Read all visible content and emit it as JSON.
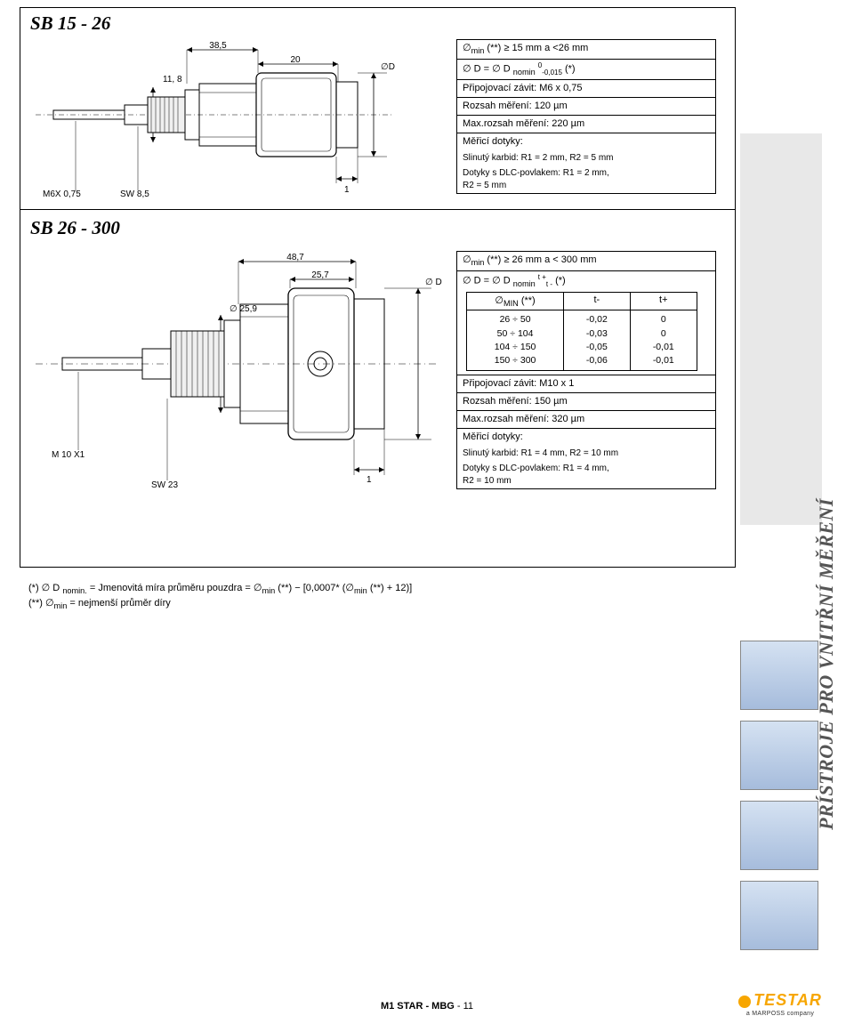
{
  "vert_label": "PŘÍSTROJE PRO VNITŘNÍ MĚŘENÍ",
  "section1": {
    "title": "SB 15 - 26",
    "dims": {
      "d1": "38,5",
      "d2": "11, 8",
      "d3": "20",
      "dlabel": "∅D",
      "left1": "M6X 0,75",
      "left2": "SW 8,5",
      "one": "1"
    },
    "spec": [
      "∅<sub>min</sub> (**) ≥ 15 mm a <26 mm",
      "∅ D = ∅ D <sub>nomin</sub> <sup class='small-sup'>0</sup><sub class='small-sup'>-0,015</sub> (*)",
      "Připojovací závit: M6 x 0,75",
      "Rozsah měření: 120 µm",
      "Max.rozsah měření: 220 µm",
      "Měřicí dotyky:",
      "Slinutý karbid: R1 = 2 mm, R2 = 5 mm",
      "Dotyky s DLC-povlakem: R1 = 2 mm,<br>R2 = 5 mm"
    ]
  },
  "section2": {
    "title": "SB 26 - 300",
    "dims": {
      "d1": "48,7",
      "d2": "25,7",
      "d3": "∅ 25,9",
      "dlabel": "∅ D",
      "left1": "M 10 X1",
      "left2": "SW 23",
      "one": "1"
    },
    "spec_top": [
      "∅<sub>min</sub> (**) ≥ 26 mm a < 300 mm",
      "∅ D = ∅ D <sub>nomin</sub> <sup class='small-sup'>t +</sup><sub class='small-sup'>t -</sub>  (*)"
    ],
    "table": {
      "headers": [
        "∅<sub>MIN</sub> (**)",
        "t-",
        "t+"
      ],
      "rows": [
        [
          "26 ÷ 50",
          "-0,02",
          "0"
        ],
        [
          "50 ÷ 104",
          "-0,03",
          "0"
        ],
        [
          "104 ÷ 150",
          "-0,05",
          "-0,01"
        ],
        [
          "150 ÷ 300",
          "-0,06",
          "-0,01"
        ]
      ]
    },
    "spec_bottom": [
      "Připojovací závit: M10 x 1",
      "Rozsah měření: 150 µm",
      "Max.rozsah měření: 320 µm",
      "Měřicí dotyky:",
      "Slinutý karbid: R1 = 4 mm, R2 = 10 mm",
      "Dotyky s DLC-povlakem: R1 = 4 mm,<br>R2 = 10 mm"
    ]
  },
  "footnotes": [
    "(*) ∅ D <sub>nomin.</sub> = Jmenovitá míra průměru pouzdra = ∅<sub>min</sub> (**) − [0,0007* (∅<sub>min</sub> (**) + 12)]",
    "(**) ∅<sub>min</sub> = nejmenší průměr díry"
  ],
  "footer": {
    "text1": "M1 STAR - MBG",
    "sep": "  -  ",
    "page": "11"
  },
  "logo": {
    "brand": "TESTAR",
    "sub": "a MARPOSS company"
  },
  "colors": {
    "accent": "#f7a600",
    "vert_bg": "#e8e8e8"
  }
}
